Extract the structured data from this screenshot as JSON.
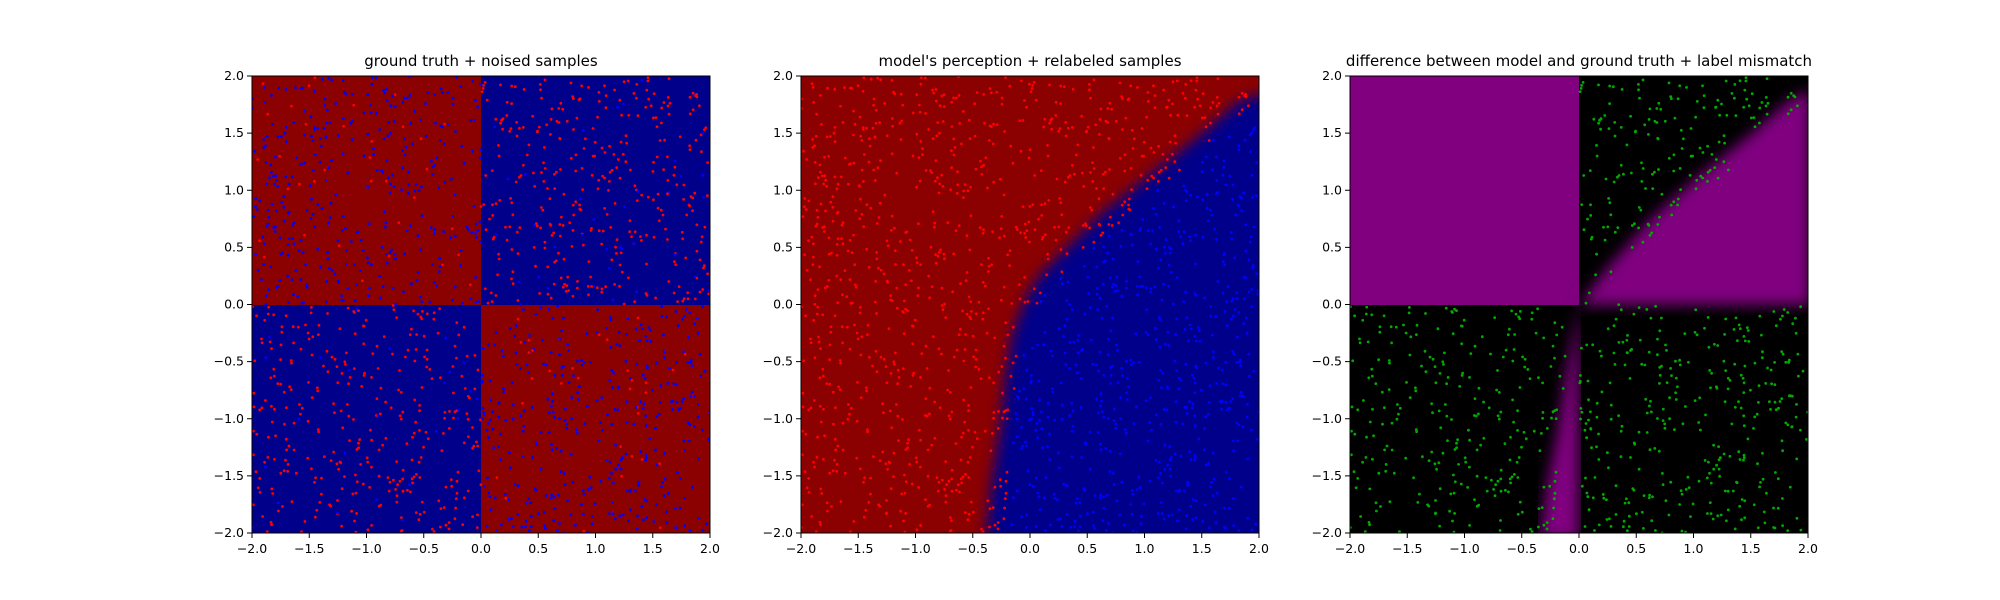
{
  "chart_data": [
    {
      "type": "heatmap",
      "title": "ground truth + noised samples",
      "xlabel": "",
      "ylabel": "",
      "xlim": [
        -2.0,
        2.0
      ],
      "ylim": [
        -2.0,
        2.0
      ],
      "xticks": [
        "−2.0",
        "−1.5",
        "−1.0",
        "−0.5",
        "0.0",
        "0.5",
        "1.0",
        "1.5",
        "2.0"
      ],
      "yticks": [
        "−2.0",
        "−1.5",
        "−1.0",
        "−0.5",
        "0.0",
        "0.5",
        "1.0",
        "1.5",
        "2.0"
      ],
      "background": "xor quadrants: red (#800000) where x*y>0 is false in top-left/bottom-right, blue (#00008b) top-right/bottom-left",
      "regions": [
        {
          "x": [
            -2,
            0
          ],
          "y": [
            0,
            2
          ],
          "color": "#8b0000"
        },
        {
          "x": [
            0,
            2
          ],
          "y": [
            0,
            2
          ],
          "color": "#00008b"
        },
        {
          "x": [
            -2,
            0
          ],
          "y": [
            -2,
            0
          ],
          "color": "#00008b"
        },
        {
          "x": [
            0,
            2
          ],
          "y": [
            -2,
            0
          ],
          "color": "#8b0000"
        }
      ],
      "series": [
        {
          "color": "#ff0000",
          "density": "concentrated in top-right and bottom-left quadrants"
        },
        {
          "color": "#0000ff",
          "density": "concentrated in top-left and bottom-right quadrants"
        }
      ],
      "grid": false
    },
    {
      "type": "heatmap",
      "title": "model's perception + relabeled samples",
      "xlabel": "",
      "ylabel": "",
      "xlim": [
        -2.0,
        2.0
      ],
      "ylim": [
        -2.0,
        2.0
      ],
      "xticks": [
        "−2.0",
        "−1.5",
        "−1.0",
        "−0.5",
        "0.0",
        "0.5",
        "1.0",
        "1.5",
        "2.0"
      ],
      "yticks": [
        "−2.0",
        "−1.5",
        "−1.0",
        "−0.5",
        "0.0",
        "0.5",
        "1.0",
        "1.5",
        "2.0"
      ],
      "regions": [
        {
          "label": "red region left/top of boundary",
          "color": "#8b0000"
        },
        {
          "label": "blue region right/bottom of boundary",
          "color": "#00008b"
        }
      ],
      "boundary_points": [
        [
          -0.2,
          -2.0
        ],
        [
          -0.1,
          -0.5
        ],
        [
          0.1,
          0.1
        ],
        [
          1.0,
          0.9
        ],
        [
          2.0,
          1.8
        ]
      ],
      "series": [
        {
          "color": "#ff0000",
          "density": "samples in red region"
        },
        {
          "color": "#0000ff",
          "density": "samples in blue region"
        }
      ],
      "grid": false
    },
    {
      "type": "heatmap",
      "title": "difference between model and ground truth + label mismatch",
      "xlabel": "",
      "ylabel": "",
      "xlim": [
        -2.0,
        2.0
      ],
      "ylim": [
        -2.0,
        2.0
      ],
      "xticks": [
        "−2.0",
        "−1.5",
        "−1.0",
        "−0.5",
        "0.0",
        "0.5",
        "1.0",
        "1.5",
        "2.0"
      ],
      "yticks": [
        "−2.0",
        "−1.5",
        "−1.0",
        "−0.5",
        "0.0",
        "0.5",
        "1.0",
        "1.5",
        "2.0"
      ],
      "regions": [
        {
          "label": "mismatch",
          "color": "#800080"
        },
        {
          "label": "match",
          "color": "#000000"
        }
      ],
      "series": [
        {
          "color": "#00aa00",
          "density": "label mismatch samples"
        }
      ],
      "grid": false
    }
  ]
}
